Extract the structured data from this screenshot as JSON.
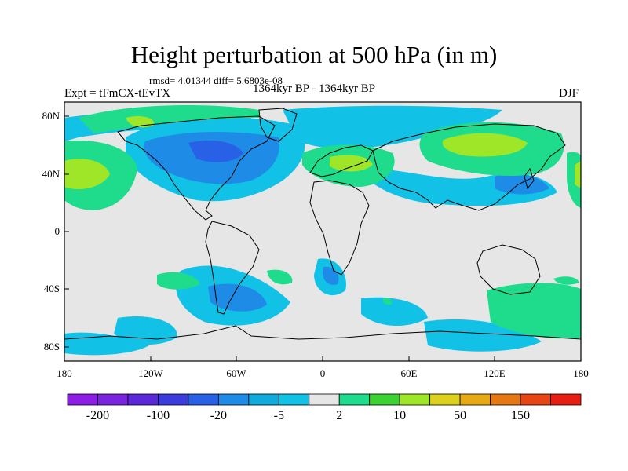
{
  "title": "Height perturbation at 500 hPa (in m)",
  "stats": "rmsd= 4.01344 diff= 5.6803e-08",
  "experiment": "Expt = tFmCX-tEvTX",
  "period": "1364kyr BP - 1364kyr BP",
  "season": "DJF",
  "lat_ticks": [
    "80N",
    "40N",
    "0",
    "40S",
    "80S"
  ],
  "lon_ticks": [
    "180",
    "120W",
    "60W",
    "0",
    "60E",
    "120E",
    "180"
  ],
  "colorbar": {
    "colors": [
      "#8c1ee6",
      "#7a24e0",
      "#5a28d8",
      "#3c3cdc",
      "#2860e6",
      "#1e8ce6",
      "#10aadc",
      "#12c2e6",
      "#e6e6e6",
      "#1edc8c",
      "#3cd232",
      "#a0e628",
      "#dcd21e",
      "#e6aa14",
      "#e67814",
      "#e64614",
      "#e61e14"
    ],
    "labels": [
      "-200",
      "-100",
      "-20",
      "-5",
      "2",
      "10",
      "50",
      "150"
    ]
  },
  "colors": {
    "background": "#e6e6e6",
    "light_blue": "#12c2e6",
    "mid_blue": "#1e8ce6",
    "dark_blue": "#2860e6",
    "green": "#1edc8c",
    "lime": "#a0e628"
  }
}
